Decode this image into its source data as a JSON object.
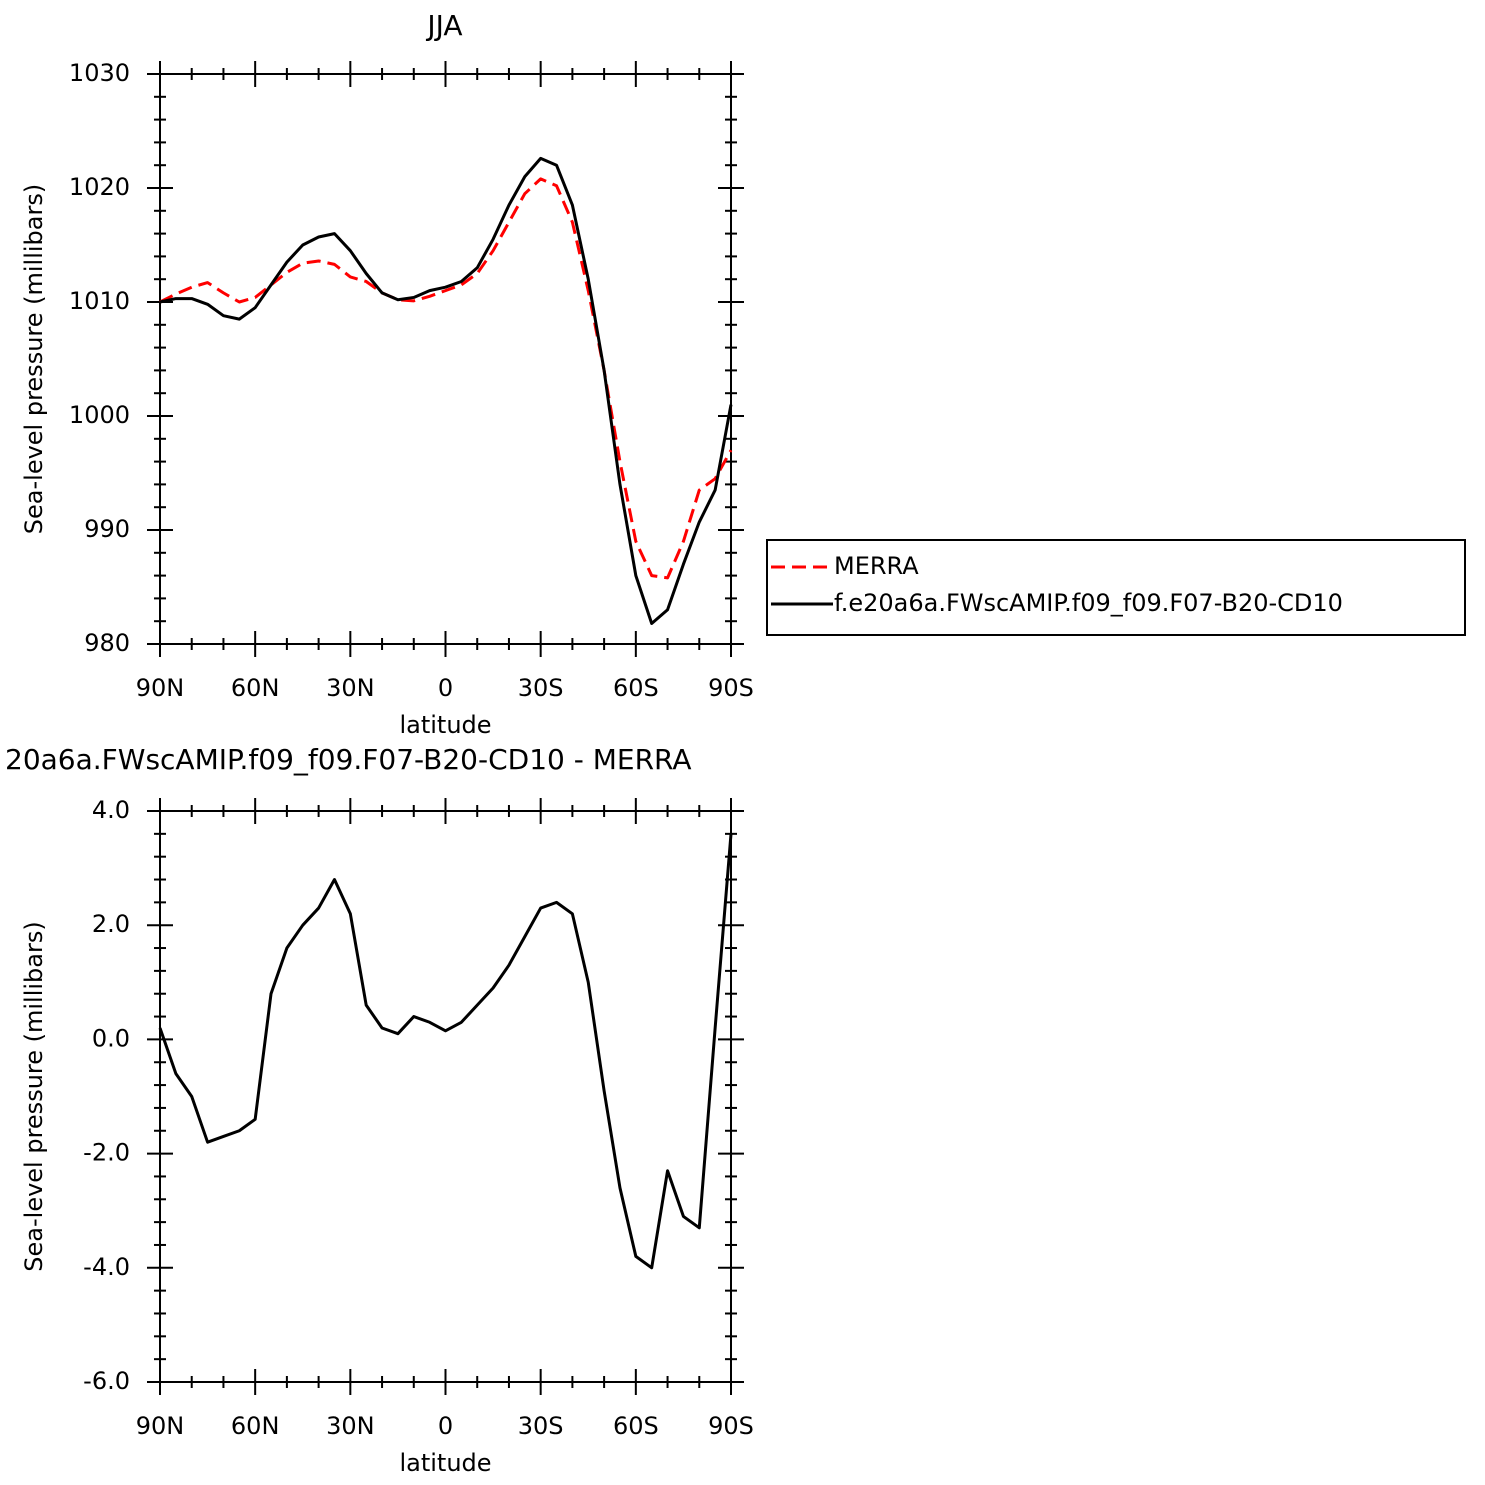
{
  "chart_data": [
    {
      "type": "line",
      "title": "JJA",
      "ylabel": "Sea-level pressure (millibars)",
      "xlabel": "latitude",
      "x": [
        90,
        85,
        80,
        75,
        70,
        65,
        60,
        55,
        50,
        45,
        40,
        35,
        30,
        25,
        20,
        15,
        10,
        5,
        0,
        -5,
        -10,
        -15,
        -20,
        -25,
        -30,
        -35,
        -40,
        -45,
        -50,
        -55,
        -60,
        -65,
        -70,
        -75,
        -80,
        -85,
        -90
      ],
      "xlim": [
        90,
        -90
      ],
      "xticks": [
        {
          "value": 90,
          "label": "90N"
        },
        {
          "value": 60,
          "label": "60N"
        },
        {
          "value": 30,
          "label": "30N"
        },
        0,
        {
          "value": -30,
          "label": "30S"
        },
        {
          "value": -60,
          "label": "60S"
        },
        {
          "value": -90,
          "label": "90S"
        }
      ],
      "ylim": [
        980,
        1030
      ],
      "yticks": [
        980,
        990,
        1000,
        1010,
        1020,
        1030
      ],
      "legend": "right",
      "series": [
        {
          "name": "MERRA",
          "color": "#ff0000",
          "dashed": true,
          "values": [
            1010,
            1010.7,
            1011.3,
            1011.7,
            1010.8,
            1010,
            1010.4,
            1011.5,
            1012.6,
            1013.4,
            1013.6,
            1013.3,
            1012.2,
            1011.8,
            1010.8,
            1010.2,
            1010.1,
            1010.5,
            1011,
            1011.5,
            1012.5,
            1014.5,
            1017,
            1019.5,
            1020.8,
            1020.2,
            1017,
            1011,
            1004,
            996,
            989,
            986,
            985.8,
            989,
            993.5,
            994.5,
            997
          ]
        },
        {
          "name": "f.e20a6a.FWscAMIP.f09_f09.F07-B20-CD10",
          "color": "#000000",
          "dashed": false,
          "values": [
            1010,
            1010.3,
            1010.3,
            1009.8,
            1008.8,
            1008.5,
            1009.5,
            1011.5,
            1013.5,
            1015,
            1015.7,
            1016,
            1014.5,
            1012.5,
            1010.8,
            1010.2,
            1010.4,
            1011,
            1011.3,
            1011.8,
            1013,
            1015.5,
            1018.5,
            1021,
            1022.6,
            1022,
            1018.5,
            1012,
            1004,
            994,
            986,
            981.8,
            983,
            987,
            990.7,
            993.5,
            1001
          ]
        }
      ]
    },
    {
      "type": "line",
      "title": "20a6a.FWscAMIP.f09_f09.F07-B20-CD10 - MERRA",
      "ylabel": "Sea-level pressure (millibars)",
      "xlabel": "latitude",
      "x": [
        90,
        85,
        80,
        75,
        70,
        65,
        60,
        55,
        50,
        45,
        40,
        35,
        30,
        25,
        20,
        15,
        10,
        5,
        0,
        -5,
        -10,
        -15,
        -20,
        -25,
        -30,
        -35,
        -40,
        -45,
        -50,
        -55,
        -60,
        -65,
        -70,
        -75,
        -80,
        -85,
        -90
      ],
      "xlim": [
        90,
        -90
      ],
      "xticks": [
        {
          "value": 90,
          "label": "90N"
        },
        {
          "value": 60,
          "label": "60N"
        },
        {
          "value": 30,
          "label": "30N"
        },
        0,
        {
          "value": -30,
          "label": "30S"
        },
        {
          "value": -60,
          "label": "60S"
        },
        {
          "value": -90,
          "label": "90S"
        }
      ],
      "ylim": [
        -6,
        4
      ],
      "yticks": [
        {
          "value": -6,
          "label": "-6.0"
        },
        {
          "value": -4,
          "label": "-4.0"
        },
        {
          "value": -2,
          "label": "-2.0"
        },
        {
          "value": 0,
          "label": "0.0"
        },
        {
          "value": 2,
          "label": "2.0"
        },
        {
          "value": 4,
          "label": "4.0"
        }
      ],
      "series": [
        {
          "color": "#000000",
          "dashed": false,
          "values": [
            0.2,
            -0.6,
            -1.0,
            -1.8,
            -1.7,
            -1.6,
            -1.4,
            0.8,
            1.6,
            2.0,
            2.3,
            2.8,
            2.2,
            0.6,
            0.2,
            0.1,
            0.4,
            0.3,
            0.15,
            0.3,
            0.6,
            0.9,
            1.3,
            1.8,
            2.3,
            2.4,
            2.2,
            1.0,
            -0.9,
            -2.6,
            -3.8,
            -4.0,
            -2.3,
            -3.1,
            -3.3,
            0.2,
            3.6
          ]
        }
      ]
    }
  ]
}
